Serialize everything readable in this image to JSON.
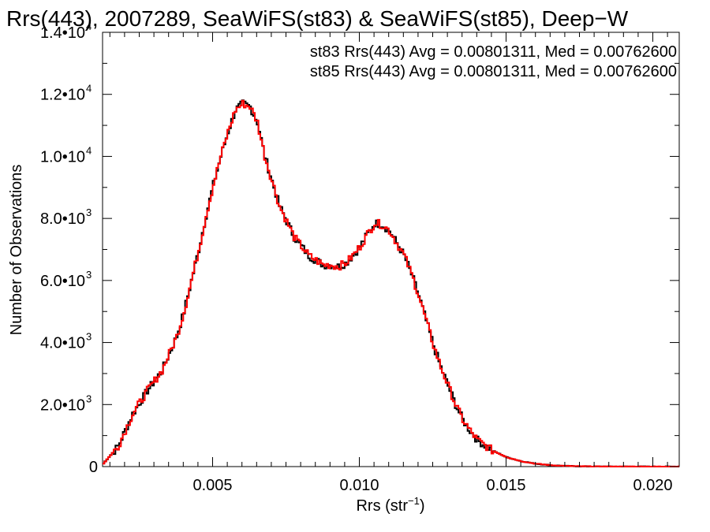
{
  "chart_data": {
    "type": "histogram",
    "title": "Rrs(443), 2007289, SeaWiFS(st83) & SeaWiFS(st85), Deep−W",
    "xlabel": "Rrs (str",
    "xlabel_unit_exponent": "−1",
    "xlabel_close": ")",
    "ylabel": "Number of Observations",
    "xlim": [
      0.00125,
      0.0209
    ],
    "ylim": [
      0,
      14000
    ],
    "x_ticks": [
      {
        "value": 0.005,
        "label": "0.005"
      },
      {
        "value": 0.01,
        "label": "0.010"
      },
      {
        "value": 0.015,
        "label": "0.015"
      },
      {
        "value": 0.02,
        "label": "0.020"
      }
    ],
    "y_ticks": [
      {
        "value": 0,
        "mantissa": "0",
        "exp": ""
      },
      {
        "value": 2000,
        "mantissa": "2.0•10",
        "exp": "3"
      },
      {
        "value": 4000,
        "mantissa": "4.0•10",
        "exp": "3"
      },
      {
        "value": 6000,
        "mantissa": "6.0•10",
        "exp": "3"
      },
      {
        "value": 8000,
        "mantissa": "8.0•10",
        "exp": "3"
      },
      {
        "value": 10000,
        "mantissa": "1.0•10",
        "exp": "4"
      },
      {
        "value": 12000,
        "mantissa": "1.2•10",
        "exp": "4"
      },
      {
        "value": 14000,
        "mantissa": "1.4•10",
        "exp": "4"
      }
    ],
    "legend_position": "top-right",
    "series": [
      {
        "name": "st83",
        "color": "#000000",
        "annotation": "st83 Rrs(443) Avg = 0.00801311, Med = 0.00762600",
        "x": [
          0.00125,
          0.00175,
          0.00225,
          0.00275,
          0.00325,
          0.00375,
          0.004,
          0.00425,
          0.0045,
          0.00475,
          0.005,
          0.00525,
          0.0055,
          0.00575,
          0.006,
          0.00625,
          0.0065,
          0.00675,
          0.007,
          0.00725,
          0.0075,
          0.00775,
          0.008,
          0.00825,
          0.0085,
          0.00875,
          0.009,
          0.00925,
          0.0095,
          0.00975,
          0.01,
          0.01025,
          0.0105,
          0.01075,
          0.011,
          0.01125,
          0.0115,
          0.01175,
          0.012,
          0.01225,
          0.0125,
          0.01275,
          0.013,
          0.01325,
          0.0135,
          0.01375,
          0.014,
          0.0145,
          0.015,
          0.0155,
          0.016,
          0.0165,
          0.017,
          0.0175,
          0.018,
          0.019,
          0.0209
        ],
        "y": [
          100,
          650,
          1700,
          2450,
          3100,
          4200,
          5000,
          6000,
          7000,
          8100,
          9100,
          10000,
          10800,
          11500,
          11700,
          11600,
          11100,
          10000,
          9200,
          8400,
          7900,
          7400,
          7100,
          6800,
          6650,
          6500,
          6500,
          6450,
          6550,
          6800,
          7100,
          7500,
          7850,
          7800,
          7600,
          7200,
          6800,
          6200,
          5500,
          4700,
          3900,
          3200,
          2600,
          2000,
          1500,
          1150,
          850,
          520,
          300,
          170,
          90,
          45,
          20,
          8,
          3,
          1,
          0
        ]
      },
      {
        "name": "st85",
        "color": "#ff0000",
        "annotation": "st85 Rrs(443) Avg = 0.00801311, Med = 0.00762600",
        "x": [
          0.00125,
          0.00175,
          0.00225,
          0.00275,
          0.00325,
          0.00375,
          0.004,
          0.00425,
          0.0045,
          0.00475,
          0.005,
          0.00525,
          0.0055,
          0.00575,
          0.006,
          0.00625,
          0.0065,
          0.00675,
          0.007,
          0.00725,
          0.0075,
          0.00775,
          0.008,
          0.00825,
          0.0085,
          0.00875,
          0.009,
          0.00925,
          0.0095,
          0.00975,
          0.01,
          0.01025,
          0.0105,
          0.01075,
          0.011,
          0.01125,
          0.0115,
          0.01175,
          0.012,
          0.01225,
          0.0125,
          0.01275,
          0.013,
          0.01325,
          0.0135,
          0.01375,
          0.014,
          0.0145,
          0.015,
          0.0155,
          0.016,
          0.0165,
          0.017,
          0.0175,
          0.018,
          0.019,
          0.0209
        ],
        "y": [
          100,
          650,
          1700,
          2450,
          3100,
          4200,
          5000,
          6000,
          7000,
          8100,
          9100,
          10000,
          10800,
          11500,
          11700,
          11600,
          11100,
          10000,
          9200,
          8400,
          7900,
          7400,
          7100,
          6800,
          6650,
          6500,
          6500,
          6450,
          6550,
          6800,
          7100,
          7500,
          7850,
          7800,
          7600,
          7200,
          6800,
          6200,
          5500,
          4700,
          3900,
          3200,
          2600,
          2000,
          1500,
          1150,
          850,
          520,
          300,
          170,
          90,
          45,
          20,
          8,
          3,
          1,
          0
        ]
      }
    ]
  }
}
